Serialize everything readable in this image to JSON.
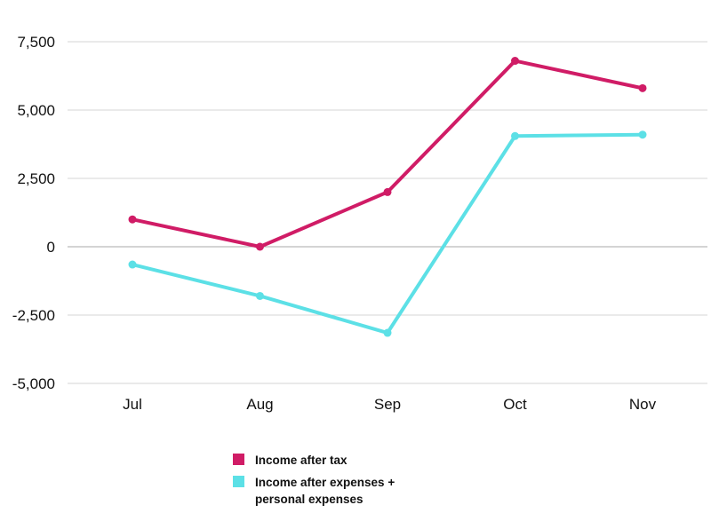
{
  "chart_data": {
    "type": "line",
    "categories": [
      "Jul",
      "Aug",
      "Sep",
      "Oct",
      "Nov"
    ],
    "series": [
      {
        "name": "Income after tax",
        "color": "#d01c66",
        "values": [
          1000,
          0,
          2000,
          6800,
          5800
        ]
      },
      {
        "name": "Income after expenses + personal expenses",
        "color": "#5ce0e6",
        "values": [
          -650,
          -1800,
          -3150,
          4050,
          4100
        ]
      }
    ],
    "ylim": [
      -5000,
      7500
    ],
    "yticks": [
      7500,
      5000,
      2500,
      0,
      -2500,
      -5000
    ],
    "ytick_labels": [
      "7,500",
      "5,000",
      "2,500",
      "0",
      "-2,500",
      "-5,000"
    ],
    "grid": true,
    "legend_position": "bottom"
  }
}
